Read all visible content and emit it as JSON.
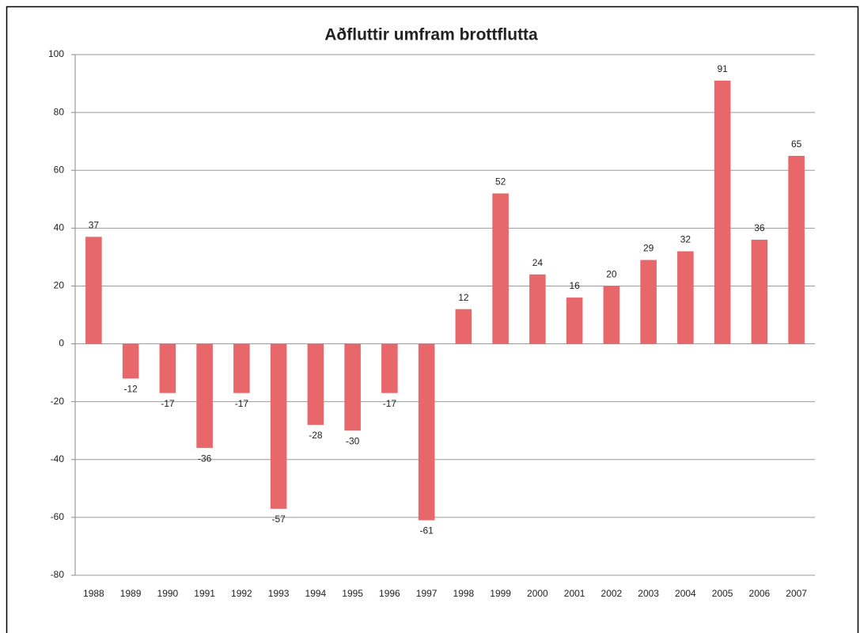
{
  "chart_data": {
    "type": "bar",
    "title": "Aðfluttir umfram brottflutta",
    "categories": [
      "1988",
      "1989",
      "1990",
      "1991",
      "1992",
      "1993",
      "1994",
      "1995",
      "1996",
      "1997",
      "1998",
      "1999",
      "2000",
      "2001",
      "2002",
      "2003",
      "2004",
      "2005",
      "2006",
      "2007"
    ],
    "values": [
      37,
      -12,
      -17,
      -36,
      -17,
      -57,
      -28,
      -30,
      -17,
      -61,
      12,
      52,
      24,
      16,
      20,
      29,
      32,
      91,
      36,
      65
    ],
    "color": "#e8676a",
    "ylim": [
      -80,
      100
    ],
    "yticks": [
      -80,
      -60,
      -40,
      -20,
      0,
      20,
      40,
      60,
      80,
      100
    ],
    "grid": true
  }
}
